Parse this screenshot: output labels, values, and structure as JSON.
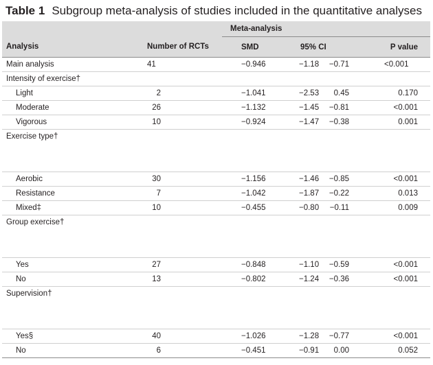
{
  "title": {
    "number": "Table 1",
    "text": "Subgroup meta-analysis of studies included in the quantitative analyses"
  },
  "header": {
    "group": "Meta-analysis",
    "analysis": "Analysis",
    "n": "Number of RCTs",
    "smd": "SMD",
    "ci": "95% CI",
    "p": "P value"
  },
  "rows": {
    "main": {
      "label": "Main analysis",
      "n": "41",
      "smd": "−0.946",
      "lo": "−1.18",
      "hi": "−0.71",
      "p": "<0.001"
    },
    "intensity": {
      "label": "Intensity of exercise†"
    },
    "light": {
      "label": "Light",
      "n": "2",
      "smd": "−1.041",
      "lo": "−2.53",
      "hi": "0.45",
      "p": "0.170"
    },
    "moderate": {
      "label": "Moderate",
      "n": "26",
      "smd": "−1.132",
      "lo": "−1.45",
      "hi": "−0.81",
      "p": "<0.001"
    },
    "vigorous": {
      "label": "Vigorous",
      "n": "10",
      "smd": "−0.924",
      "lo": "−1.47",
      "hi": "−0.38",
      "p": "0.001"
    },
    "type": {
      "label": "Exercise type†"
    },
    "aerobic": {
      "label": "Aerobic",
      "n": "30",
      "smd": "−1.156",
      "lo": "−1.46",
      "hi": "−0.85",
      "p": "<0.001"
    },
    "resistance": {
      "label": "Resistance",
      "n": "7",
      "smd": "−1.042",
      "lo": "−1.87",
      "hi": "−0.22",
      "p": "0.013"
    },
    "mixed": {
      "label": "Mixed‡",
      "n": "10",
      "smd": "−0.455",
      "lo": "−0.80",
      "hi": "−0.11",
      "p": "0.009"
    },
    "group": {
      "label": "Group exercise†"
    },
    "yes": {
      "label": "Yes",
      "n": "27",
      "smd": "−0.848",
      "lo": "−1.10",
      "hi": "−0.59",
      "p": "<0.001"
    },
    "no": {
      "label": "No",
      "n": "13",
      "smd": "−0.802",
      "lo": "−1.24",
      "hi": "−0.36",
      "p": "<0.001"
    },
    "supervision": {
      "label": "Supervision†"
    },
    "sup_yes": {
      "label": "Yes§",
      "n": "40",
      "smd": "−1.026",
      "lo": "−1.28",
      "hi": "−0.77",
      "p": "<0.001"
    },
    "sup_no": {
      "label": "No",
      "n": "6",
      "smd": "−0.451",
      "lo": "−0.91",
      "hi": "0.00",
      "p": "0.052"
    }
  }
}
